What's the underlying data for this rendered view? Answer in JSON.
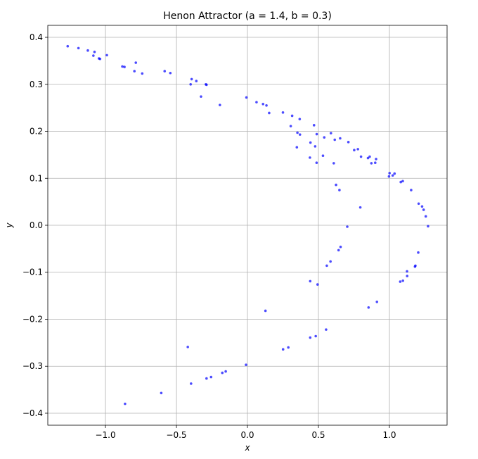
{
  "chart_data": {
    "type": "scatter",
    "title": "Henon Attractor (a = 1.4, b = 0.3)",
    "x_label": "x",
    "y_label": "y",
    "color": "#0000ff",
    "grid": true,
    "xlim": [
      -1.406,
      1.406
    ],
    "ylim": [
      -0.4255,
      0.4255
    ],
    "xticks": [
      {
        "value": -1.0,
        "label": "−1.0"
      },
      {
        "value": -0.5,
        "label": "−0.5"
      },
      {
        "value": 0,
        "label": "0.0"
      },
      {
        "value": 0.5,
        "label": "0.5"
      },
      {
        "value": 1.0,
        "label": "1.0"
      }
    ],
    "yticks": [
      {
        "value": -0.4,
        "label": "−0.4"
      },
      {
        "value": -0.3,
        "label": "−0.3"
      },
      {
        "value": -0.2,
        "label": "−0.2"
      },
      {
        "value": -0.1,
        "label": "−0.1"
      },
      {
        "value": 0,
        "label": "0.0"
      },
      0.1,
      0.2,
      0.3,
      0.4
    ],
    "x": [
      -0.4,
      1.076,
      -0.741,
      0.554,
      0.348,
      0.997,
      -0.288,
      1.183,
      -1.046,
      -0.177,
      0.642,
      0.37,
      1.001,
      -0.293,
      1.18,
      -1.038,
      -0.153,
      0.656,
      0.352,
      1.023,
      -0.36,
      1.125,
      -0.881,
      0.251,
      0.648,
      0.488,
      0.861,
      0.11,
      1.241,
      -1.124,
      -0.397,
      0.442,
      0.608,
      0.615,
      0.653,
      0.588,
      0.711,
      0.469,
      0.906,
      -0.007,
      1.272,
      -1.266,
      -0.862,
      -0.42,
      0.494,
      0.532,
      0.752,
      0.368,
      1.036,
      -0.393,
      1.095,
      -0.796,
      0.442,
      0.487,
      0.8,
      0.25,
      1.153,
      -0.786,
      0.481,
      0.44,
      0.873,
      0.064,
      1.256,
      -1.19,
      -0.607,
      0.127,
      0.795,
      0.153,
      1.206,
      -0.99,
      -0.01,
      0.703,
      0.305,
      1.08,
      -0.543,
      0.912,
      -0.327,
      1.124,
      -0.866,
      0.288,
      0.624,
      0.541,
      0.778,
      0.315,
      1.094,
      -0.583,
      0.853,
      -0.194,
      1.203,
      -1.085,
      -0.288,
      0.559,
      0.477,
      0.849,
      0.134,
      1.23,
      -1.077,
      -0.256,
      0.585,
      0.444,
      0.9
    ],
    "values": [
      0.3,
      -0.12,
      0.323,
      -0.222,
      0.166,
      0.104,
      0.299,
      -0.086,
      0.355,
      -0.314,
      -0.053,
      0.193,
      0.111,
      0.3,
      -0.088,
      0.354,
      -0.311,
      -0.046,
      0.197,
      0.106,
      0.307,
      -0.108,
      0.338,
      -0.264,
      0.075,
      0.194,
      0.146,
      0.258,
      0.033,
      0.372,
      -0.337,
      -0.119,
      0.132,
      0.182,
      0.185,
      0.196,
      0.177,
      0.213,
      0.141,
      0.272,
      -0.002,
      0.381,
      -0.38,
      -0.259,
      -0.126,
      0.148,
      0.16,
      0.226,
      0.11,
      0.311,
      -0.118,
      0.328,
      -0.239,
      0.133,
      0.146,
      0.24,
      0.075,
      0.346,
      -0.236,
      0.144,
      0.132,
      0.262,
      0.019,
      0.377,
      -0.357,
      -0.182,
      0.038,
      0.239,
      0.046,
      0.362,
      -0.297,
      -0.003,
      0.211,
      0.092,
      0.324,
      -0.163,
      0.274,
      -0.098,
      0.337,
      -0.26,
      0.086,
      0.187,
      0.162,
      0.233,
      0.094,
      0.328,
      -0.175,
      0.256,
      -0.058,
      0.361,
      -0.326,
      -0.086,
      0.168,
      0.143,
      0.255,
      0.04,
      0.369,
      -0.323,
      -0.077,
      0.176,
      0.133
    ]
  }
}
